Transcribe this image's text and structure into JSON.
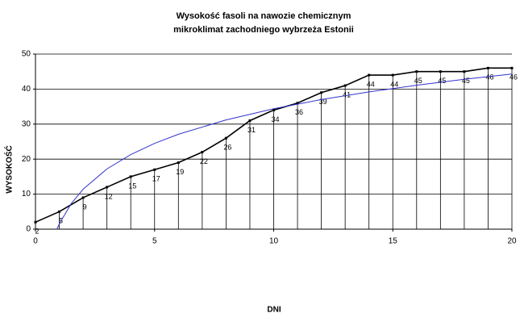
{
  "chart_data": {
    "type": "line",
    "title": [
      "Wysokość fasoli na nawozie chemicznym",
      "mikroklimat zachodniego wybrzeża Estonii"
    ],
    "x_label": "DNI",
    "y_label": "WYSOKOŚĆ",
    "x": [
      0,
      1,
      2,
      3,
      4,
      5,
      6,
      7,
      8,
      9,
      10,
      11,
      12,
      13,
      14,
      15,
      16,
      17,
      18,
      19,
      20
    ],
    "series": [
      {
        "color": "#000000",
        "values": [
          2,
          5,
          9,
          12,
          15,
          17,
          19,
          22,
          26,
          31,
          34,
          36,
          39,
          41,
          44,
          44,
          45,
          45,
          45,
          46,
          46
        ]
      }
    ],
    "trendline": {
      "color": "#3333cc",
      "x": [
        0.9,
        1,
        1.5,
        2,
        3,
        4,
        5,
        6,
        8,
        10,
        12,
        14,
        16,
        18,
        20
      ],
      "values": [
        0,
        1.5,
        7.3,
        11.4,
        17.2,
        21.3,
        24.5,
        27.1,
        31.2,
        34.4,
        37.0,
        39.2,
        41.1,
        42.8,
        44.3
      ]
    },
    "xlim": [
      0,
      20
    ],
    "xticks": [
      0,
      5,
      10,
      15,
      20
    ],
    "ylim": [
      0,
      50
    ],
    "yticks": [
      0,
      10,
      20,
      30,
      40,
      50
    ],
    "grid": true,
    "drop_lines": true
  }
}
